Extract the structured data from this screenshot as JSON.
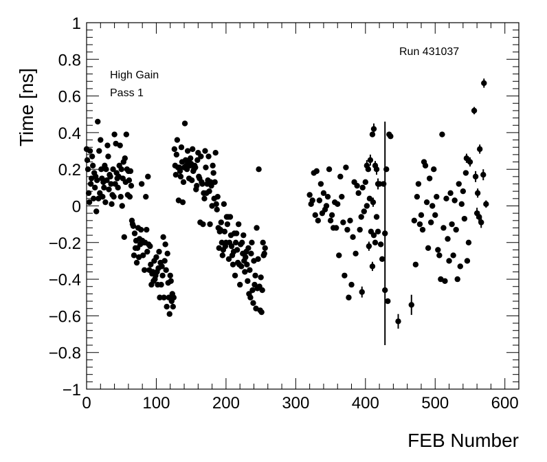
{
  "chart_data": {
    "type": "scatter",
    "title": "",
    "xlabel": "FEB Number",
    "ylabel": "Time [ns]",
    "xlim": [
      0,
      620
    ],
    "ylim": [
      -1,
      1
    ],
    "xticks": [
      0,
      100,
      200,
      300,
      400,
      500,
      600
    ],
    "yticks": [
      -1,
      -0.8,
      -0.6,
      -0.4,
      -0.2,
      0,
      0.2,
      0.4,
      0.6,
      0.8,
      1
    ],
    "xtick_labels": [
      "0",
      "100",
      "200",
      "300",
      "400",
      "500",
      "600"
    ],
    "ytick_labels": [
      "−1",
      "−0.8",
      "−0.6",
      "−0.4",
      "−0.2",
      "0",
      "0.2",
      "0.4",
      "0.6",
      "0.8",
      "1"
    ],
    "annotations": {
      "run": "Run 431037",
      "gain": "High Gain",
      "pass": "Pass 1"
    },
    "grid": false,
    "marker_color": "#000000",
    "points": [
      [
        0,
        0.31
      ],
      [
        1,
        0.25
      ],
      [
        2,
        0.2
      ],
      [
        3,
        0.07
      ],
      [
        4,
        0.02
      ],
      [
        5,
        0.3
      ],
      [
        6,
        0.12
      ],
      [
        7,
        0.15
      ],
      [
        8,
        0.27
      ],
      [
        9,
        0.22
      ],
      [
        10,
        0.04
      ],
      [
        11,
        0.18
      ],
      [
        12,
        0.1
      ],
      [
        13,
        0.16
      ],
      [
        14,
        -0.03
      ],
      [
        15,
        0.14
      ],
      [
        16,
        0.46
      ],
      [
        17,
        0.04
      ],
      [
        18,
        0.3
      ],
      [
        19,
        0.07
      ],
      [
        20,
        0.36
      ],
      [
        21,
        0.2
      ],
      [
        22,
        0.15
      ],
      [
        23,
        0.05
      ],
      [
        24,
        0.13
      ],
      [
        25,
        0.1
      ],
      [
        26,
        0.22
      ],
      [
        27,
        0.02
      ],
      [
        28,
        0.2
      ],
      [
        29,
        0.14
      ],
      [
        30,
        0.33
      ],
      [
        31,
        0.27
      ],
      [
        32,
        0.09
      ],
      [
        33,
        0.17
      ],
      [
        34,
        0.16
      ],
      [
        35,
        0.12
      ],
      [
        36,
        0.01
      ],
      [
        37,
        0.06
      ],
      [
        38,
        0.2
      ],
      [
        39,
        0.05
      ],
      [
        40,
        0.39
      ],
      [
        41,
        0.12
      ],
      [
        42,
        0.34
      ],
      [
        43,
        0.18
      ],
      [
        44,
        0.15
      ],
      [
        45,
        0.1
      ],
      [
        46,
        0.16
      ],
      [
        47,
        0.22
      ],
      [
        48,
        0.33
      ],
      [
        49,
        0.05
      ],
      [
        50,
        0.2
      ],
      [
        51,
        0.0
      ],
      [
        52,
        0.15
      ],
      [
        53,
        0.24
      ],
      [
        54,
        -0.17
      ],
      [
        55,
        0.26
      ],
      [
        56,
        0.13
      ],
      [
        57,
        0.39
      ],
      [
        58,
        0.2
      ],
      [
        59,
        0.06
      ],
      [
        60,
        0.19
      ],
      [
        61,
        0.14
      ],
      [
        62,
        0.05
      ],
      [
        63,
        0.19
      ],
      [
        64,
        0.11
      ],
      [
        65,
        -0.08
      ],
      [
        66,
        -0.1
      ],
      [
        67,
        -0.11
      ],
      [
        68,
        -0.27
      ],
      [
        69,
        -0.15
      ],
      [
        70,
        -0.23
      ],
      [
        71,
        -0.19
      ],
      [
        72,
        -0.31
      ],
      [
        73,
        -0.23
      ],
      [
        74,
        -0.12
      ],
      [
        75,
        -0.28
      ],
      [
        76,
        -0.18
      ],
      [
        77,
        -0.21
      ],
      [
        78,
        -0.13
      ],
      [
        79,
        0.12
      ],
      [
        80,
        -0.19
      ],
      [
        81,
        -0.27
      ],
      [
        82,
        -0.2
      ],
      [
        83,
        -0.35
      ],
      [
        84,
        -0.2
      ],
      [
        85,
        0.05
      ],
      [
        86,
        -0.13
      ],
      [
        87,
        -0.25
      ],
      [
        88,
        0.16
      ],
      [
        89,
        -0.21
      ],
      [
        90,
        -0.35
      ],
      [
        91,
        -0.22
      ],
      [
        92,
        -0.32
      ],
      [
        93,
        -0.43
      ],
      [
        94,
        -0.37
      ],
      [
        95,
        -0.36
      ],
      [
        96,
        -0.41
      ],
      [
        97,
        -0.3
      ],
      [
        98,
        -0.4
      ],
      [
        99,
        -0.38
      ],
      [
        100,
        -0.28
      ],
      [
        101,
        -0.36
      ],
      [
        102,
        -0.43
      ],
      [
        103,
        -0.34
      ],
      [
        104,
        -0.25
      ],
      [
        105,
        -0.5
      ],
      [
        106,
        -0.31
      ],
      [
        107,
        -0.43
      ],
      [
        108,
        -0.33
      ],
      [
        109,
        -0.38
      ],
      [
        110,
        -0.17
      ],
      [
        111,
        -0.5
      ],
      [
        112,
        -0.3
      ],
      [
        113,
        -0.21
      ],
      [
        114,
        -0.35
      ],
      [
        115,
        -0.55
      ],
      [
        116,
        -0.26
      ],
      [
        117,
        -0.42
      ],
      [
        118,
        -0.5
      ],
      [
        119,
        -0.59
      ],
      [
        120,
        -0.38
      ],
      [
        121,
        -0.41
      ],
      [
        122,
        -0.52
      ],
      [
        123,
        -0.48
      ],
      [
        124,
        -0.55
      ],
      [
        125,
        -0.5
      ],
      [
        126,
        0.31
      ],
      [
        127,
        0.22
      ],
      [
        128,
        0.17
      ],
      [
        129,
        0.28
      ],
      [
        130,
        0.36
      ],
      [
        131,
        0.21
      ],
      [
        132,
        0.03
      ],
      [
        133,
        0.21
      ],
      [
        134,
        0.19
      ],
      [
        135,
        0.16
      ],
      [
        136,
        0.32
      ],
      [
        137,
        0.24
      ],
      [
        138,
        0.02
      ],
      [
        139,
        0.13
      ],
      [
        140,
        0.21
      ],
      [
        141,
        0.45
      ],
      [
        142,
        0.25
      ],
      [
        143,
        0.22
      ],
      [
        144,
        0.2
      ],
      [
        145,
        0.3
      ],
      [
        146,
        0.24
      ],
      [
        147,
        0.15
      ],
      [
        148,
        0.22
      ],
      [
        149,
        0.26
      ],
      [
        150,
        0.23
      ],
      [
        151,
        0.14
      ],
      [
        152,
        0.31
      ],
      [
        153,
        0.19
      ],
      [
        154,
        0.2
      ],
      [
        155,
        0.22
      ],
      [
        156,
        0.21
      ],
      [
        157,
        0.09
      ],
      [
        158,
        0.11
      ],
      [
        159,
        0.25
      ],
      [
        160,
        0.29
      ],
      [
        161,
        0.16
      ],
      [
        162,
        0.15
      ],
      [
        163,
        -0.09
      ],
      [
        164,
        0.27
      ],
      [
        165,
        0.13
      ],
      [
        166,
        0.12
      ],
      [
        167,
        -0.1
      ],
      [
        168,
        0.07
      ],
      [
        169,
        0.04
      ],
      [
        170,
        0.3
      ],
      [
        171,
        0.21
      ],
      [
        172,
        0.07
      ],
      [
        173,
        0.12
      ],
      [
        174,
        0.14
      ],
      [
        175,
        0.27
      ],
      [
        176,
        0.08
      ],
      [
        177,
        -0.1
      ],
      [
        178,
        0.13
      ],
      [
        179,
        0.11
      ],
      [
        180,
        0.0
      ],
      [
        181,
        0.22
      ],
      [
        182,
        0.18
      ],
      [
        183,
        0.04
      ],
      [
        184,
        0.13
      ],
      [
        185,
        0.29
      ],
      [
        186,
        0.01
      ],
      [
        187,
        -0.02
      ],
      [
        188,
        0.05
      ],
      [
        189,
        -0.12
      ],
      [
        190,
        -0.23
      ],
      [
        191,
        -0.14
      ],
      [
        192,
        -0.13
      ],
      [
        193,
        -0.09
      ],
      [
        194,
        -0.2
      ],
      [
        195,
        -0.27
      ],
      [
        196,
        -0.24
      ],
      [
        197,
        0.01
      ],
      [
        198,
        -0.14
      ],
      [
        199,
        -0.22
      ],
      [
        200,
        -0.2
      ],
      [
        201,
        -0.06
      ],
      [
        202,
        -0.1
      ],
      [
        203,
        -0.06
      ],
      [
        204,
        -0.29
      ],
      [
        205,
        -0.2
      ],
      [
        206,
        -0.06
      ],
      [
        207,
        -0.16
      ],
      [
        208,
        -0.22
      ],
      [
        209,
        -0.27
      ],
      [
        210,
        -0.32
      ],
      [
        211,
        -0.25
      ],
      [
        212,
        -0.15
      ],
      [
        213,
        -0.38
      ],
      [
        214,
        -0.2
      ],
      [
        215,
        -0.15
      ],
      [
        216,
        -0.24
      ],
      [
        217,
        -0.31
      ],
      [
        218,
        -0.1
      ],
      [
        219,
        -0.32
      ],
      [
        220,
        -0.43
      ],
      [
        221,
        -0.21
      ],
      [
        222,
        -0.33
      ],
      [
        223,
        -0.2
      ],
      [
        224,
        -0.26
      ],
      [
        225,
        -0.16
      ],
      [
        226,
        -0.3
      ],
      [
        227,
        -0.36
      ],
      [
        228,
        -0.28
      ],
      [
        229,
        -0.25
      ],
      [
        230,
        -0.32
      ],
      [
        231,
        -0.41
      ],
      [
        232,
        -0.23
      ],
      [
        233,
        -0.48
      ],
      [
        234,
        -0.35
      ],
      [
        235,
        -0.5
      ],
      [
        236,
        -0.26
      ],
      [
        237,
        -0.2
      ],
      [
        238,
        -0.46
      ],
      [
        239,
        -0.53
      ],
      [
        240,
        -0.3
      ],
      [
        241,
        -0.43
      ],
      [
        242,
        -0.38
      ],
      [
        243,
        -0.56
      ],
      [
        244,
        -0.12
      ],
      [
        245,
        -0.45
      ],
      [
        246,
        -0.29
      ],
      [
        247,
        0.2
      ],
      [
        248,
        -0.44
      ],
      [
        249,
        -0.57
      ],
      [
        250,
        -0.39
      ],
      [
        251,
        -0.58
      ],
      [
        252,
        -0.46
      ],
      [
        253,
        -0.2
      ],
      [
        254,
        -0.27
      ],
      [
        255,
        -0.26
      ],
      [
        256,
        -0.23
      ],
      [
        320,
        0.06
      ],
      [
        322,
        0.01
      ],
      [
        324,
        0.03
      ],
      [
        326,
        0.18
      ],
      [
        328,
        -0.05
      ],
      [
        330,
        0.19
      ],
      [
        332,
        -0.08
      ],
      [
        334,
        0.03
      ],
      [
        336,
        0.12
      ],
      [
        338,
        -0.04
      ],
      [
        340,
        0.07
      ],
      [
        342,
        -0.02
      ],
      [
        344,
        0.0
      ],
      [
        346,
        0.05
      ],
      [
        348,
        0.2
      ],
      [
        350,
        -0.08
      ],
      [
        352,
        -0.05
      ],
      [
        354,
        -0.12
      ],
      [
        356,
        0.02
      ],
      [
        358,
        -0.12
      ],
      [
        360,
        0.01
      ],
      [
        362,
        -0.27
      ],
      [
        364,
        0.16
      ],
      [
        366,
        0.05
      ],
      [
        368,
        -0.09
      ],
      [
        370,
        -0.38
      ],
      [
        372,
        0.21
      ],
      [
        374,
        -0.13
      ],
      [
        376,
        -0.5
      ],
      [
        378,
        -0.08
      ],
      [
        380,
        -0.43
      ],
      [
        382,
        -0.17
      ],
      [
        384,
        0.13
      ],
      [
        386,
        -0.26
      ],
      [
        388,
        0.11
      ],
      [
        390,
        0.07
      ],
      [
        392,
        -0.13
      ],
      [
        394,
        -0.06
      ],
      [
        396,
        0.1
      ],
      [
        398,
        -0.03
      ],
      [
        400,
        0.13
      ],
      [
        402,
        0.0
      ],
      [
        404,
        0.2
      ],
      [
        406,
        0.04
      ],
      [
        408,
        -0.14
      ],
      [
        410,
        0.39
      ],
      [
        412,
        -0.16
      ],
      [
        414,
        -0.2
      ],
      [
        416,
        -0.06
      ],
      [
        418,
        -0.14
      ],
      [
        420,
        0.12
      ],
      [
        422,
        -0.21
      ],
      [
        424,
        -0.29
      ],
      [
        426,
        0.12
      ],
      [
        428,
        -0.46
      ],
      [
        430,
        0.2
      ],
      [
        432,
        -0.52
      ],
      [
        434,
        0.39
      ],
      [
        436,
        0.38
      ]
    ],
    "error_points": [
      [
        395,
        -0.47,
        0.03
      ],
      [
        402,
        0.22,
        0.03
      ],
      [
        405,
        -0.22,
        0.025
      ],
      [
        407,
        0.25,
        0.03
      ],
      [
        410,
        -0.33,
        0.025
      ],
      [
        411,
        0.02,
        0.025
      ],
      [
        412,
        0.42,
        0.03
      ],
      [
        414,
        0.22,
        0.025
      ],
      [
        416,
        0.2,
        0.03
      ],
      [
        418,
        0.12,
        0.03
      ],
      [
        428,
        -0.15,
        0.61
      ],
      [
        447,
        -0.63,
        0.04
      ],
      [
        466,
        -0.54,
        0.055
      ],
      [
        545,
        0.26,
        0.025
      ],
      [
        550,
        0.24,
        0.025
      ],
      [
        556,
        0.52,
        0.02
      ],
      [
        558,
        0.16,
        0.03
      ],
      [
        560,
        -0.04,
        0.03
      ],
      [
        561,
        0.07,
        0.025
      ],
      [
        563,
        -0.06,
        0.03
      ],
      [
        564,
        0.31,
        0.025
      ],
      [
        566,
        -0.09,
        0.03
      ],
      [
        569,
        0.17,
        0.03
      ],
      [
        570,
        0.67,
        0.025
      ],
      [
        573,
        0.01,
        0.02
      ]
    ],
    "points_right": [
      [
        470,
        -0.08
      ],
      [
        472,
        -0.32
      ],
      [
        474,
        0.05
      ],
      [
        476,
        0.12
      ],
      [
        478,
        -0.1
      ],
      [
        480,
        -0.05
      ],
      [
        482,
        -0.13
      ],
      [
        484,
        0.24
      ],
      [
        486,
        0.22
      ],
      [
        488,
        0.02
      ],
      [
        490,
        -0.23
      ],
      [
        492,
        0.15
      ],
      [
        494,
        -0.09
      ],
      [
        496,
        0.0
      ],
      [
        498,
        0.2
      ],
      [
        500,
        -0.05
      ],
      [
        502,
        0.05
      ],
      [
        504,
        -0.24
      ],
      [
        506,
        -0.27
      ],
      [
        508,
        -0.4
      ],
      [
        510,
        0.39
      ],
      [
        512,
        -0.12
      ],
      [
        514,
        -0.41
      ],
      [
        516,
        0.04
      ],
      [
        518,
        -0.18
      ],
      [
        520,
        -0.3
      ],
      [
        522,
        0.07
      ],
      [
        524,
        -0.1
      ],
      [
        526,
        -0.27
      ],
      [
        528,
        0.03
      ],
      [
        530,
        -0.13
      ],
      [
        532,
        -0.4
      ],
      [
        534,
        0.12
      ],
      [
        536,
        -0.33
      ],
      [
        538,
        0.01
      ],
      [
        540,
        0.08
      ],
      [
        542,
        -0.07
      ],
      [
        544,
        0.18
      ],
      [
        546,
        -0.3
      ],
      [
        548,
        -0.2
      ]
    ]
  }
}
